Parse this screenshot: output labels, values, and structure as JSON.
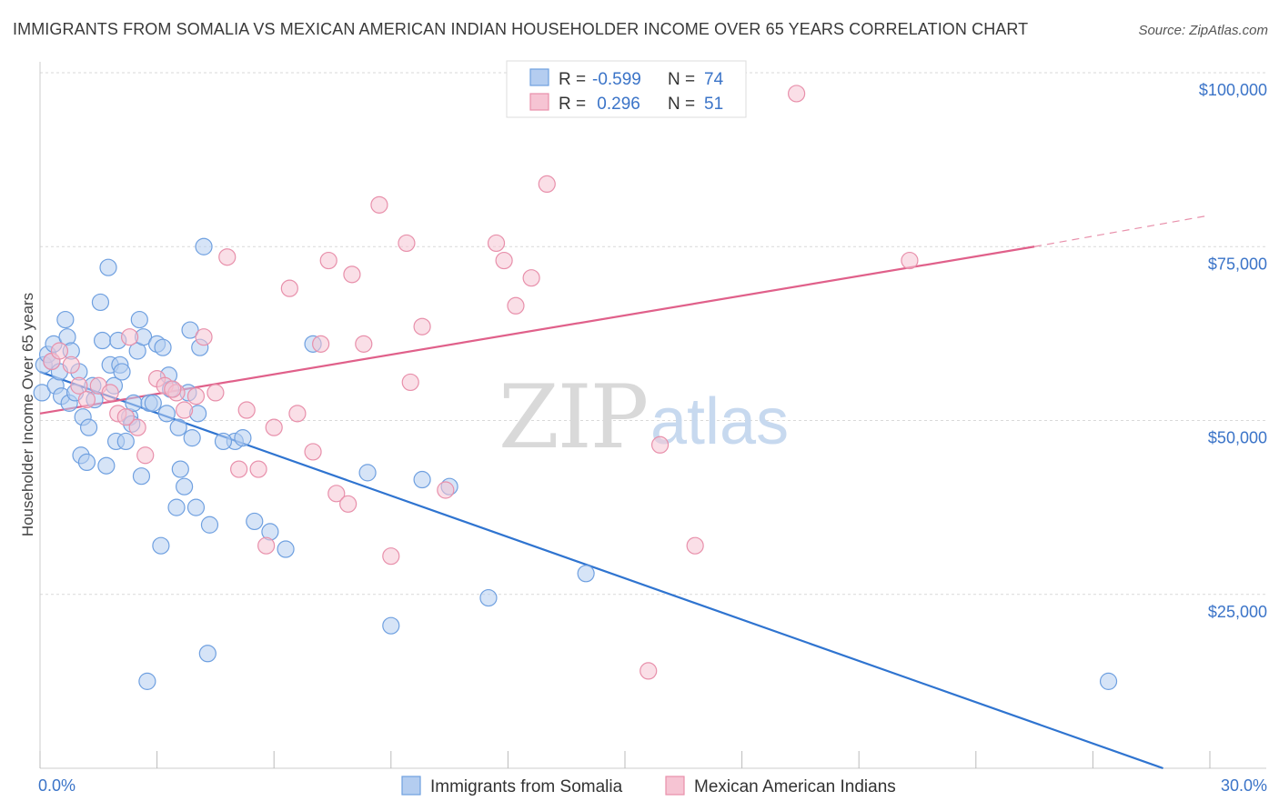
{
  "title": "IMMIGRANTS FROM SOMALIA VS MEXICAN AMERICAN INDIAN HOUSEHOLDER INCOME OVER 65 YEARS CORRELATION CHART",
  "source": "Source: ZipAtlas.com",
  "legend_box": {
    "rows": [
      {
        "r_label": "R =",
        "r_value": "-0.599",
        "n_label": "N =",
        "n_value": "74"
      },
      {
        "r_label": "R =",
        "r_value": " 0.296",
        "n_label": "N =",
        "n_value": "51"
      }
    ]
  },
  "watermark": {
    "zip": "ZIP",
    "atlas": "atlas"
  },
  "chart_data": {
    "type": "scatter",
    "title": "IMMIGRANTS FROM SOMALIA VS MEXICAN AMERICAN INDIAN HOUSEHOLDER INCOME OVER 65 YEARS CORRELATION CHART",
    "xlabel": "",
    "ylabel": "Householder Income Over 65 years",
    "xlim": [
      0,
      30
    ],
    "ylim": [
      0,
      100000
    ],
    "x_tick_labels": [
      "0.0%",
      "30.0%"
    ],
    "y_ticks": [
      25000,
      50000,
      75000,
      100000
    ],
    "y_tick_labels": [
      "$25,000",
      "$50,000",
      "$75,000",
      "$100,000"
    ],
    "grid": true,
    "legend_position": "bottom",
    "series": [
      {
        "name": "Immigrants from Somalia",
        "color": "#6fa0e0",
        "fill": "#b4cdf0",
        "trend": {
          "x0": 0,
          "y0": 57000,
          "x1": 28.8,
          "y1": 0
        },
        "points": [
          [
            0.05,
            54000
          ],
          [
            0.1,
            58000
          ],
          [
            0.2,
            59500
          ],
          [
            0.3,
            58500
          ],
          [
            0.35,
            61000
          ],
          [
            0.4,
            55000
          ],
          [
            0.5,
            57000
          ],
          [
            0.55,
            53500
          ],
          [
            0.65,
            64500
          ],
          [
            0.7,
            62000
          ],
          [
            0.75,
            52500
          ],
          [
            0.8,
            60000
          ],
          [
            0.9,
            54000
          ],
          [
            1.0,
            57000
          ],
          [
            1.05,
            45000
          ],
          [
            1.1,
            50500
          ],
          [
            1.2,
            44000
          ],
          [
            1.25,
            49000
          ],
          [
            1.35,
            55000
          ],
          [
            1.4,
            53000
          ],
          [
            1.55,
            67000
          ],
          [
            1.6,
            61500
          ],
          [
            1.7,
            43500
          ],
          [
            1.75,
            72000
          ],
          [
            1.8,
            58000
          ],
          [
            1.9,
            55000
          ],
          [
            1.95,
            47000
          ],
          [
            2.0,
            61500
          ],
          [
            2.05,
            58000
          ],
          [
            2.1,
            57000
          ],
          [
            2.2,
            47000
          ],
          [
            2.3,
            50500
          ],
          [
            2.35,
            49500
          ],
          [
            2.4,
            52500
          ],
          [
            2.5,
            60000
          ],
          [
            2.55,
            64500
          ],
          [
            2.6,
            42000
          ],
          [
            2.65,
            62000
          ],
          [
            2.8,
            52500
          ],
          [
            2.9,
            52500
          ],
          [
            3.0,
            61000
          ],
          [
            3.1,
            32000
          ],
          [
            3.15,
            60500
          ],
          [
            3.25,
            51000
          ],
          [
            3.3,
            56500
          ],
          [
            3.35,
            54500
          ],
          [
            3.5,
            37500
          ],
          [
            3.55,
            49000
          ],
          [
            3.6,
            43000
          ],
          [
            3.7,
            40500
          ],
          [
            3.8,
            54000
          ],
          [
            3.85,
            63000
          ],
          [
            3.9,
            47500
          ],
          [
            4.0,
            37500
          ],
          [
            4.05,
            51000
          ],
          [
            4.1,
            60500
          ],
          [
            4.2,
            75000
          ],
          [
            4.3,
            16500
          ],
          [
            4.35,
            35000
          ],
          [
            5.0,
            47000
          ],
          [
            5.2,
            47500
          ],
          [
            5.5,
            35500
          ],
          [
            5.9,
            34000
          ],
          [
            6.3,
            31500
          ],
          [
            7.0,
            61000
          ],
          [
            8.4,
            42500
          ],
          [
            9.0,
            20500
          ],
          [
            9.8,
            41500
          ],
          [
            10.5,
            40500
          ],
          [
            11.5,
            24500
          ],
          [
            14.0,
            28000
          ],
          [
            27.4,
            12500
          ],
          [
            2.75,
            12500
          ],
          [
            4.7,
            47000
          ]
        ]
      },
      {
        "name": "Mexican American Indians",
        "color": "#e890ab",
        "fill": "#f6c4d3",
        "trend": {
          "x0": 0,
          "y0": 51000,
          "x1": 25.5,
          "y1": 75000,
          "dash_to_x": 30,
          "dash_to_y": 79500
        },
        "points": [
          [
            0.3,
            58500
          ],
          [
            0.5,
            60000
          ],
          [
            0.8,
            58000
          ],
          [
            1.0,
            55000
          ],
          [
            1.5,
            55000
          ],
          [
            1.8,
            54000
          ],
          [
            2.0,
            51000
          ],
          [
            2.3,
            62000
          ],
          [
            2.5,
            49000
          ],
          [
            2.7,
            45000
          ],
          [
            3.0,
            56000
          ],
          [
            3.2,
            55000
          ],
          [
            3.5,
            54000
          ],
          [
            3.7,
            51500
          ],
          [
            4.0,
            53500
          ],
          [
            4.2,
            62000
          ],
          [
            4.5,
            54000
          ],
          [
            4.8,
            73500
          ],
          [
            5.1,
            43000
          ],
          [
            5.3,
            51500
          ],
          [
            5.6,
            43000
          ],
          [
            5.8,
            32000
          ],
          [
            6.0,
            49000
          ],
          [
            6.4,
            69000
          ],
          [
            6.6,
            51000
          ],
          [
            7.0,
            45500
          ],
          [
            7.2,
            61000
          ],
          [
            7.4,
            73000
          ],
          [
            7.6,
            39500
          ],
          [
            7.9,
            38000
          ],
          [
            8.0,
            71000
          ],
          [
            8.3,
            61000
          ],
          [
            8.7,
            81000
          ],
          [
            9.0,
            30500
          ],
          [
            9.4,
            75500
          ],
          [
            9.5,
            55500
          ],
          [
            9.8,
            63500
          ],
          [
            10.4,
            40000
          ],
          [
            11.7,
            75500
          ],
          [
            11.9,
            73000
          ],
          [
            12.2,
            66500
          ],
          [
            12.6,
            70500
          ],
          [
            13.0,
            84000
          ],
          [
            15.6,
            14000
          ],
          [
            15.9,
            46500
          ],
          [
            16.8,
            32000
          ],
          [
            19.4,
            97000
          ],
          [
            22.3,
            73000
          ],
          [
            1.2,
            53000
          ],
          [
            2.2,
            50500
          ],
          [
            3.4,
            54500
          ]
        ]
      }
    ]
  }
}
